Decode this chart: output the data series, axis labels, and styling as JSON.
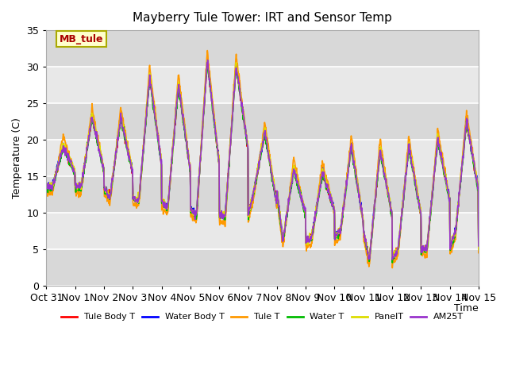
{
  "title": "Mayberry Tule Tower: IRT and Sensor Temp",
  "xlabel": "Time",
  "ylabel": "Temperature (C)",
  "ylim": [
    0,
    35
  ],
  "plot_bg_color": "#e8e8e8",
  "annotation_label": "MB_tule",
  "annotation_color": "#aa0000",
  "annotation_bg": "#ffffcc",
  "annotation_border": "#aaaa00",
  "x_tick_labels": [
    "Oct 31",
    "Nov 1",
    "Nov 2",
    "Nov 3",
    "Nov 4",
    "Nov 5",
    "Nov 6",
    "Nov 7",
    "Nov 8",
    "Nov 9",
    "Nov 10",
    "Nov 11",
    "Nov 12",
    "Nov 13",
    "Nov 14",
    "Nov 15"
  ],
  "series": [
    {
      "name": "Tule Body T",
      "color": "#ff0000",
      "lw": 1.2
    },
    {
      "name": "Water Body T",
      "color": "#0000ff",
      "lw": 1.2
    },
    {
      "name": "Tule T",
      "color": "#ff9900",
      "lw": 1.2
    },
    {
      "name": "Water T",
      "color": "#00bb00",
      "lw": 1.2
    },
    {
      "name": "PanelT",
      "color": "#dddd00",
      "lw": 1.2
    },
    {
      "name": "AM25T",
      "color": "#9933cc",
      "lw": 1.2
    }
  ],
  "day_peaks": [
    19.0,
    23.0,
    23.0,
    28.5,
    27.5,
    30.8,
    30.2,
    21.0,
    16.0,
    15.5,
    19.0,
    18.5,
    19.0,
    20.0,
    22.5,
    10.0
  ],
  "day_troughs": [
    13.5,
    13.5,
    12.0,
    11.5,
    10.5,
    9.5,
    9.5,
    13.0,
    6.0,
    6.5,
    7.5,
    3.5,
    5.0,
    5.0,
    7.5,
    8.0
  ],
  "peak_hour": 14.0,
  "trough_hour": 5.0
}
